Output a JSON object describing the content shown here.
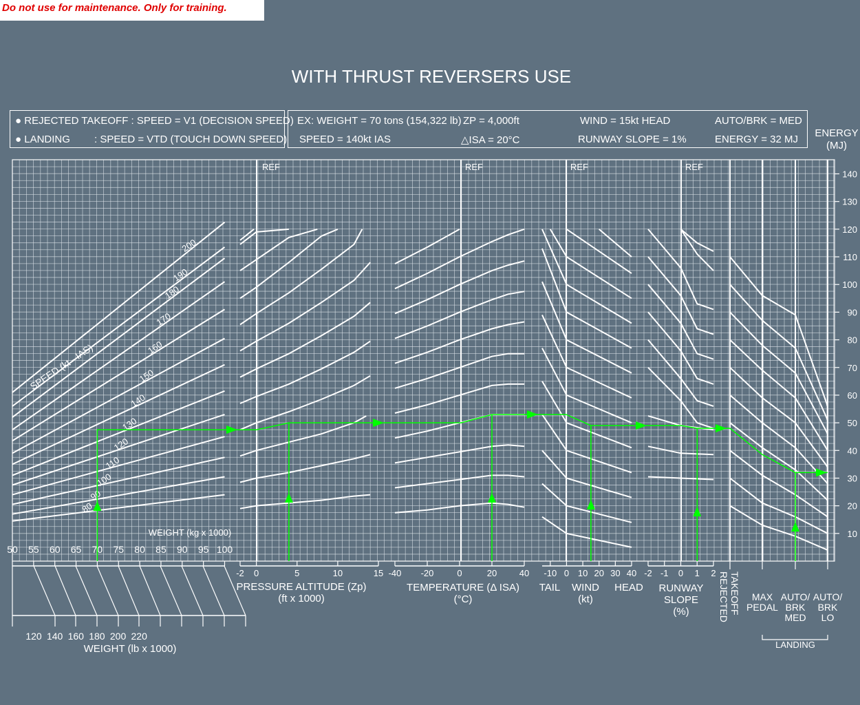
{
  "banner": "Do not use for maintenance. Only for training.",
  "title": "WITH THRUST REVERSERS USE",
  "conditions": {
    "rto": "REJECTED TAKEOFF : SPEED = V1 (DECISION SPEED)",
    "landing_a": "LANDING",
    "landing_b": ": SPEED = VTD (TOUCH DOWN SPEED)"
  },
  "example": {
    "weight": "EX: WEIGHT = 70 tons (154,322 lb)",
    "zp": "ZP = 4,000ft",
    "wind": "WIND = 15kt HEAD",
    "brake": "AUTO/BRK = MED",
    "speed": "SPEED = 140kt IAS",
    "isa": "ISA = 20°C",
    "slope": "RUNWAY SLOPE = 1%",
    "energy": "ENERGY = 32 MJ"
  },
  "colors": {
    "background": "#5f7180",
    "grid": "#dfe6ec",
    "curves": "#ffffff",
    "example_path": "#00ff00",
    "banner_text": "#e00000"
  },
  "chart_data": {
    "type": "line",
    "energy_axis": {
      "title": [
        "ENERGY",
        "(MJ)"
      ],
      "ticks": [
        10,
        20,
        30,
        40,
        50,
        60,
        70,
        80,
        90,
        100,
        110,
        120,
        130,
        140
      ],
      "range": [
        0,
        146
      ]
    },
    "ref_label": "REF",
    "speed_title": "SPEED (kt - IAS)",
    "weight_kg": {
      "label": "WEIGHT (kg x 1000)",
      "ticks": [
        50,
        55,
        60,
        65,
        70,
        75,
        80,
        85,
        90,
        95,
        100
      ],
      "range": [
        50,
        100
      ]
    },
    "weight_lb": {
      "label": "WEIGHT (lb x 1000)",
      "ticks": [
        120,
        140,
        160,
        180,
        200,
        220
      ]
    },
    "speed_lines": [
      {
        "name": "80",
        "e50": 14.5,
        "e100": 24
      },
      {
        "name": "90",
        "e50": 17,
        "e100": 30.5
      },
      {
        "name": "100",
        "e50": 20.5,
        "e100": 37.5
      },
      {
        "name": "110",
        "e50": 24,
        "e100": 45
      },
      {
        "name": "120",
        "e50": 27.5,
        "e100": 53
      },
      {
        "name": "130",
        "e50": 31,
        "e100": 61.5
      },
      {
        "name": "140",
        "e50": 35,
        "e100": 71
      },
      {
        "name": "150",
        "e50": 39,
        "e100": 80.5
      },
      {
        "name": "160",
        "e50": 43.5,
        "e100": 91
      },
      {
        "name": "170",
        "e50": 47.5,
        "e100": 101
      },
      {
        "name": "180",
        "e50": 52
      },
      {
        "name": "190",
        "e50": 56
      },
      {
        "name": "200",
        "e50": 61
      }
    ],
    "altitude": {
      "label": [
        "PRESSURE ALTITUDE (Zp)",
        "(ft x 1000)"
      ],
      "ticks": [
        -2,
        0,
        5,
        10,
        15
      ],
      "range": [
        -2,
        15
      ],
      "curves": [
        {
          "x": [
            -2,
            0,
            4,
            8,
            12,
            14
          ],
          "y": [
            19,
            20,
            21,
            22,
            23.5,
            24
          ]
        },
        {
          "x": [
            -2,
            0,
            4,
            8,
            12,
            14
          ],
          "y": [
            28.5,
            30,
            32,
            34.5,
            37,
            38.5
          ]
        },
        {
          "x": [
            -2,
            0,
            4,
            8,
            12,
            13.5
          ],
          "y": [
            38,
            40,
            43,
            46,
            50,
            52.5
          ]
        },
        {
          "x": [
            -2,
            0,
            4,
            8,
            12,
            14
          ],
          "y": [
            47.5,
            50,
            54,
            58.5,
            63.5,
            67
          ]
        },
        {
          "x": [
            -2,
            0,
            4,
            8,
            12,
            14
          ],
          "y": [
            57,
            59.5,
            64,
            69.5,
            75.5,
            79.5
          ]
        },
        {
          "x": [
            -2,
            0,
            4,
            8,
            12,
            14
          ],
          "y": [
            66.5,
            69.5,
            75,
            81.5,
            88.5,
            93.5
          ]
        },
        {
          "x": [
            -2,
            0,
            4,
            8,
            12,
            14
          ],
          "y": [
            76,
            79.5,
            86,
            93.5,
            101.5,
            108
          ]
        },
        {
          "x": [
            -2,
            0,
            4,
            8,
            12,
            13
          ],
          "y": [
            85.5,
            89.5,
            97,
            105.5,
            114.5,
            120
          ]
        },
        {
          "x": [
            -2,
            0,
            4,
            8,
            10
          ],
          "y": [
            95,
            99,
            108,
            117.5,
            120
          ]
        },
        {
          "x": [
            -2,
            0,
            4,
            7.5
          ],
          "y": [
            105,
            109,
            117,
            120
          ]
        },
        {
          "x": [
            -2,
            0,
            4
          ],
          "y": [
            114.5,
            119,
            120
          ]
        },
        {
          "x": [
            -2,
            -0.3
          ],
          "y": [
            116,
            120
          ]
        }
      ]
    },
    "temperature": {
      "label": [
        "TEMPERATURE (Δ ISA)",
        "(°C)"
      ],
      "ticks": [
        -40,
        -20,
        0,
        20,
        40
      ],
      "range": [
        -40,
        40
      ],
      "curves": [
        {
          "x": [
            -40,
            -20,
            0,
            20,
            30,
            40
          ],
          "y": [
            17.5,
            18.5,
            20,
            21,
            20.5,
            19.5
          ]
        },
        {
          "x": [
            -40,
            -20,
            0,
            20,
            30,
            40
          ],
          "y": [
            26.5,
            28,
            29.5,
            31,
            31,
            30.5
          ]
        },
        {
          "x": [
            -40,
            -20,
            0,
            20,
            30,
            40
          ],
          "y": [
            35.5,
            37.5,
            39.5,
            41.5,
            42,
            41.5
          ]
        },
        {
          "x": [
            -40,
            -20,
            0,
            20,
            30,
            40
          ],
          "y": [
            44.5,
            47,
            50,
            53,
            53,
            53
          ]
        },
        {
          "x": [
            -40,
            -20,
            0,
            20,
            30,
            40
          ],
          "y": [
            53.5,
            56.5,
            60,
            63.5,
            64,
            64
          ]
        },
        {
          "x": [
            -40,
            -20,
            0,
            20,
            30,
            40
          ],
          "y": [
            62.5,
            66,
            70,
            74,
            75,
            75
          ]
        },
        {
          "x": [
            -40,
            -20,
            0,
            20,
            30,
            40
          ],
          "y": [
            71.5,
            75.5,
            80,
            84,
            85.5,
            86.5
          ]
        },
        {
          "x": [
            -40,
            -20,
            0,
            20,
            30,
            40
          ],
          "y": [
            80.5,
            85,
            90,
            94.5,
            96.5,
            97.5
          ]
        },
        {
          "x": [
            -40,
            -20,
            0,
            20,
            30,
            40
          ],
          "y": [
            89.5,
            94.5,
            100,
            105,
            107,
            108.5
          ]
        },
        {
          "x": [
            -40,
            -20,
            0,
            20,
            30,
            40
          ],
          "y": [
            98.5,
            104,
            110,
            115.5,
            118,
            120
          ]
        },
        {
          "x": [
            -40,
            -20,
            0
          ],
          "y": [
            107.5,
            113.5,
            120
          ]
        }
      ]
    },
    "wind": {
      "label": [
        "WIND",
        "(kt)"
      ],
      "side_labels": [
        "TAIL",
        "HEAD"
      ],
      "ticks": [
        -10,
        0,
        10,
        20,
        30,
        40
      ],
      "range": [
        -15,
        40
      ],
      "curves": [
        {
          "x": [
            -15,
            0,
            40
          ],
          "y": [
            16,
            10,
            5
          ]
        },
        {
          "x": [
            -15,
            0,
            40
          ],
          "y": [
            28,
            20,
            14
          ]
        },
        {
          "x": [
            -15,
            0,
            40
          ],
          "y": [
            40,
            30,
            23
          ]
        },
        {
          "x": [
            -15,
            0,
            40
          ],
          "y": [
            53,
            40,
            32
          ]
        },
        {
          "x": [
            -15,
            0,
            40
          ],
          "y": [
            65,
            50,
            41
          ]
        },
        {
          "x": [
            -15,
            0,
            40
          ],
          "y": [
            77,
            60,
            50
          ]
        },
        {
          "x": [
            -15,
            0,
            40
          ],
          "y": [
            89,
            70,
            59
          ]
        },
        {
          "x": [
            -15,
            0,
            40
          ],
          "y": [
            101,
            80,
            68
          ]
        },
        {
          "x": [
            -15,
            0,
            40
          ],
          "y": [
            113,
            90,
            77
          ]
        },
        {
          "x": [
            -15,
            0,
            40
          ],
          "y": [
            120,
            100,
            86
          ]
        },
        {
          "x": [
            -10,
            0,
            40
          ],
          "y": [
            120,
            110,
            95
          ]
        },
        {
          "x": [
            0,
            40
          ],
          "y": [
            120,
            104
          ]
        },
        {
          "x": [
            20,
            40
          ],
          "y": [
            120,
            110
          ]
        }
      ]
    },
    "slope": {
      "label": [
        "RUNWAY",
        "SLOPE",
        "(%)"
      ],
      "ticks": [
        -2,
        -1,
        0,
        1,
        2
      ],
      "range": [
        -2,
        2
      ],
      "curves": [
        {
          "x": [
            -2,
            0,
            2
          ],
          "y": [
            30.5,
            30,
            29.5
          ]
        },
        {
          "x": [
            -2,
            0,
            2
          ],
          "y": [
            41.5,
            39,
            38.5
          ]
        },
        {
          "x": [
            -2,
            0,
            2
          ],
          "y": [
            52.5,
            49,
            47.5
          ]
        },
        {
          "x": [
            -2,
            -1,
            0,
            1,
            2
          ],
          "y": [
            120,
            113,
            106,
            93,
            91
          ]
        },
        {
          "x": [
            -2,
            -1,
            0,
            1,
            2
          ],
          "y": [
            110,
            103,
            96,
            84,
            82
          ]
        },
        {
          "x": [
            -2,
            -1,
            0,
            1,
            2
          ],
          "y": [
            100,
            93,
            86,
            75,
            73
          ]
        },
        {
          "x": [
            -2,
            -1,
            0,
            1,
            2
          ],
          "y": [
            90,
            83,
            76,
            66,
            64
          ]
        },
        {
          "x": [
            -2,
            -1,
            0,
            1,
            2
          ],
          "y": [
            80,
            73,
            66,
            58,
            56
          ]
        },
        {
          "x": [
            -2,
            -1,
            0,
            1,
            2
          ],
          "y": [
            70,
            64,
            58,
            50,
            48
          ]
        },
        {
          "x": [
            0,
            1,
            2
          ],
          "y": [
            120,
            111,
            105
          ]
        },
        {
          "x": [
            0,
            1,
            2
          ],
          "y": [
            120,
            115,
            112
          ]
        }
      ]
    },
    "braking": {
      "columns": [
        "TAKEOFF\nREJECTED",
        "MAX\nPEDAL",
        "AUTO/\nBRK\nMED",
        "AUTO/\nBRK\nLO"
      ],
      "group_label": "LANDING",
      "curves": [
        {
          "y": [
            20,
            13,
            9,
            4
          ]
        },
        {
          "y": [
            30,
            21,
            16,
            10
          ]
        },
        {
          "y": [
            40,
            31,
            24,
            16
          ]
        },
        {
          "y": [
            50,
            41,
            33,
            22
          ]
        },
        {
          "y": [
            60,
            50,
            41,
            28
          ]
        },
        {
          "y": [
            70,
            59,
            50,
            34
          ]
        },
        {
          "y": [
            80,
            69,
            59,
            40
          ]
        },
        {
          "y": [
            90,
            78,
            68,
            46
          ]
        },
        {
          "y": [
            100,
            87,
            77,
            51
          ]
        },
        {
          "y": [
            110,
            96,
            89,
            56
          ]
        }
      ]
    },
    "example_path": {
      "weight_kg": 70,
      "speed": 140,
      "zp": 4,
      "delta_isa": 20,
      "wind_head": 15,
      "slope": 1,
      "brake": "AUTO/BRK MED",
      "energy_rto": 47.5,
      "energy_zp": 50,
      "energy_isa": 53,
      "energy_wind": 49,
      "energy_slope": 48,
      "energy_result": 32
    }
  }
}
